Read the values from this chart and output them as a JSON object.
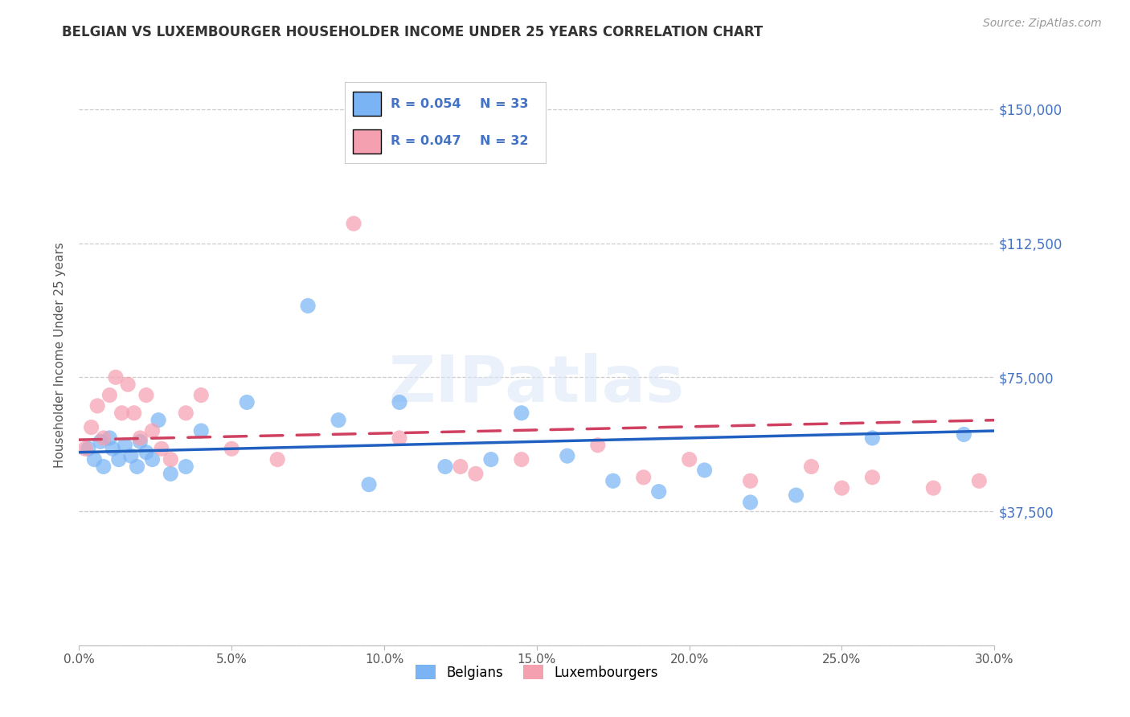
{
  "title": "BELGIAN VS LUXEMBOURGER HOUSEHOLDER INCOME UNDER 25 YEARS CORRELATION CHART",
  "source": "Source: ZipAtlas.com",
  "ylabel": "Householder Income Under 25 years",
  "xlabel_ticks": [
    "0.0%",
    "5.0%",
    "10.0%",
    "15.0%",
    "20.0%",
    "25.0%",
    "30.0%"
  ],
  "xlabel_vals": [
    0.0,
    5.0,
    10.0,
    15.0,
    20.0,
    25.0,
    30.0
  ],
  "ytick_vals": [
    0,
    37500,
    75000,
    112500,
    150000
  ],
  "ytick_labels": [
    "",
    "$37,500",
    "$75,000",
    "$112,500",
    "$150,000"
  ],
  "xlim": [
    0.0,
    30.0
  ],
  "ylim": [
    0,
    162500
  ],
  "legend_belgian_R": "R = 0.054",
  "legend_belgian_N": "N = 33",
  "legend_luxembourger_R": "R = 0.047",
  "legend_luxembourger_N": "N = 32",
  "belgian_color": "#7ab4f5",
  "luxembourger_color": "#f5a0b0",
  "trend_belgian_color": "#2060c0",
  "trend_luxembourger_color": "#d04060",
  "trend_belgian_x0": 0.0,
  "trend_belgian_y0": 54000,
  "trend_belgian_x1": 30.0,
  "trend_belgian_y1": 60000,
  "trend_lux_x0": 0.0,
  "trend_lux_y0": 57500,
  "trend_lux_x1": 30.0,
  "trend_lux_y1": 63000,
  "watermark": "ZIPatlas",
  "background_color": "#ffffff",
  "grid_color": "#cccccc",
  "belgians_x": [
    0.3,
    0.5,
    0.7,
    0.8,
    1.0,
    1.1,
    1.3,
    1.5,
    1.7,
    1.9,
    2.0,
    2.2,
    2.4,
    2.6,
    3.0,
    3.5,
    4.0,
    5.5,
    7.5,
    8.5,
    9.5,
    10.5,
    12.0,
    13.5,
    14.5,
    16.0,
    17.5,
    19.0,
    20.5,
    22.0,
    23.5,
    26.0,
    29.0
  ],
  "belgians_y": [
    55000,
    52000,
    57000,
    50000,
    58000,
    55000,
    52000,
    56000,
    53000,
    50000,
    57000,
    54000,
    52000,
    63000,
    48000,
    50000,
    60000,
    68000,
    95000,
    63000,
    45000,
    68000,
    50000,
    52000,
    65000,
    53000,
    46000,
    43000,
    49000,
    40000,
    42000,
    58000,
    59000
  ],
  "luxembourgers_x": [
    0.2,
    0.4,
    0.6,
    0.8,
    1.0,
    1.2,
    1.4,
    1.6,
    1.8,
    2.0,
    2.2,
    2.4,
    2.7,
    3.0,
    3.5,
    4.0,
    5.0,
    6.5,
    9.0,
    10.5,
    12.5,
    13.0,
    14.5,
    17.0,
    18.5,
    20.0,
    22.0,
    24.0,
    25.0,
    26.0,
    28.0,
    29.5
  ],
  "luxembourgers_y": [
    55000,
    61000,
    67000,
    58000,
    70000,
    75000,
    65000,
    73000,
    65000,
    58000,
    70000,
    60000,
    55000,
    52000,
    65000,
    70000,
    55000,
    52000,
    118000,
    58000,
    50000,
    48000,
    52000,
    56000,
    47000,
    52000,
    46000,
    50000,
    44000,
    47000,
    44000,
    46000
  ]
}
